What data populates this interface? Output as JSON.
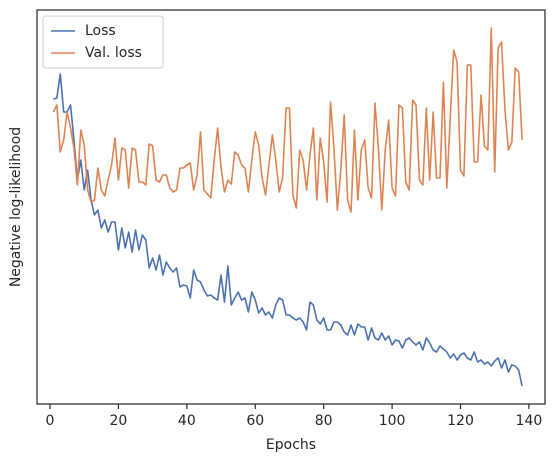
{
  "chart_data": {
    "type": "line",
    "x_label": "Epochs",
    "y_label": "Negative log-likelihood",
    "x": [
      1,
      2,
      3,
      4,
      5,
      6,
      7,
      8,
      9,
      10,
      11,
      12,
      13,
      14,
      15,
      16,
      17,
      18,
      19,
      20,
      21,
      22,
      23,
      24,
      25,
      26,
      27,
      28,
      29,
      30,
      31,
      32,
      33,
      34,
      35,
      36,
      37,
      38,
      39,
      40,
      41,
      42,
      43,
      44,
      45,
      46,
      47,
      48,
      49,
      50,
      51,
      52,
      53,
      54,
      55,
      56,
      57,
      58,
      59,
      60,
      61,
      62,
      63,
      64,
      65,
      66,
      67,
      68,
      69,
      70,
      71,
      72,
      73,
      74,
      75,
      76,
      77,
      78,
      79,
      80,
      81,
      82,
      83,
      84,
      85,
      86,
      87,
      88,
      89,
      90,
      91,
      92,
      93,
      94,
      95,
      96,
      97,
      98,
      99,
      100,
      101,
      102,
      103,
      104,
      105,
      106,
      107,
      108,
      109,
      110,
      111,
      112,
      113,
      114,
      115,
      116,
      117,
      118,
      119,
      120,
      121,
      122,
      123,
      124,
      125,
      126,
      127,
      128,
      129,
      130,
      131,
      132,
      133,
      134,
      135,
      136,
      137,
      138
    ],
    "series": [
      {
        "name": "Loss",
        "color": "#4c72b0",
        "values": [
          305,
          306,
          330,
          292,
          292,
          299,
          264,
          224,
          244,
          214,
          234,
          204,
          189,
          194,
          176,
          184,
          172,
          182,
          182,
          154,
          176,
          156,
          172,
          152,
          174,
          154,
          169,
          164,
          136,
          146,
          134,
          149,
          129,
          142,
          136,
          132,
          136,
          117,
          119,
          118,
          106,
          134,
          124,
          122,
          114,
          108,
          109,
          106,
          104,
          129,
          102,
          138,
          99,
          106,
          112,
          104,
          106,
          92,
          112,
          104,
          91,
          96,
          89,
          92,
          86,
          99,
          106,
          104,
          89,
          89,
          86,
          84,
          86,
          82,
          74,
          102,
          99,
          84,
          80,
          86,
          74,
          74,
          82,
          82,
          79,
          72,
          69,
          79,
          69,
          80,
          77,
          77,
          64,
          76,
          66,
          64,
          71,
          64,
          68,
          59,
          64,
          63,
          56,
          64,
          66,
          62,
          59,
          62,
          54,
          66,
          61,
          54,
          52,
          58,
          55,
          52,
          46,
          50,
          44,
          49,
          51,
          46,
          44,
          52,
          42,
          44,
          40,
          42,
          38,
          43,
          46,
          36,
          44,
          32,
          39,
          38,
          34,
          18
        ]
      },
      {
        "name": "Val. loss",
        "color": "#dd8452",
        "values": [
          292,
          299,
          252,
          264,
          292,
          276,
          256,
          219,
          274,
          259,
          214,
          202,
          204,
          236,
          214,
          208,
          224,
          239,
          266,
          224,
          256,
          254,
          216,
          256,
          254,
          222,
          222,
          219,
          260,
          258,
          224,
          222,
          229,
          229,
          216,
          212,
          214,
          236,
          236,
          239,
          241,
          214,
          229,
          272,
          214,
          210,
          206,
          244,
          276,
          236,
          212,
          224,
          220,
          252,
          249,
          239,
          236,
          212,
          244,
          272,
          259,
          226,
          209,
          239,
          269,
          244,
          212,
          226,
          296,
          296,
          209,
          196,
          254,
          244,
          214,
          249,
          276,
          204,
          266,
          242,
          202,
          302,
          256,
          194,
          234,
          289,
          204,
          192,
          274,
          204,
          254,
          264,
          216,
          206,
          301,
          256,
          194,
          254,
          284,
          216,
          208,
          299,
          296,
          222,
          214,
          304,
          299,
          224,
          219,
          296,
          224,
          292,
          226,
          226,
          322,
          216,
          286,
          354,
          342,
          234,
          228,
          339,
          339,
          242,
          242,
          309,
          258,
          254,
          376,
          232,
          356,
          362,
          294,
          254,
          262,
          336,
          332,
          264
        ]
      }
    ],
    "xlim": [
      -3.8,
      144.7
    ],
    "xticks": [
      0,
      20,
      40,
      60,
      80,
      100,
      120,
      140
    ],
    "ylim": [
      0,
      394
    ],
    "legend": "upper left"
  }
}
